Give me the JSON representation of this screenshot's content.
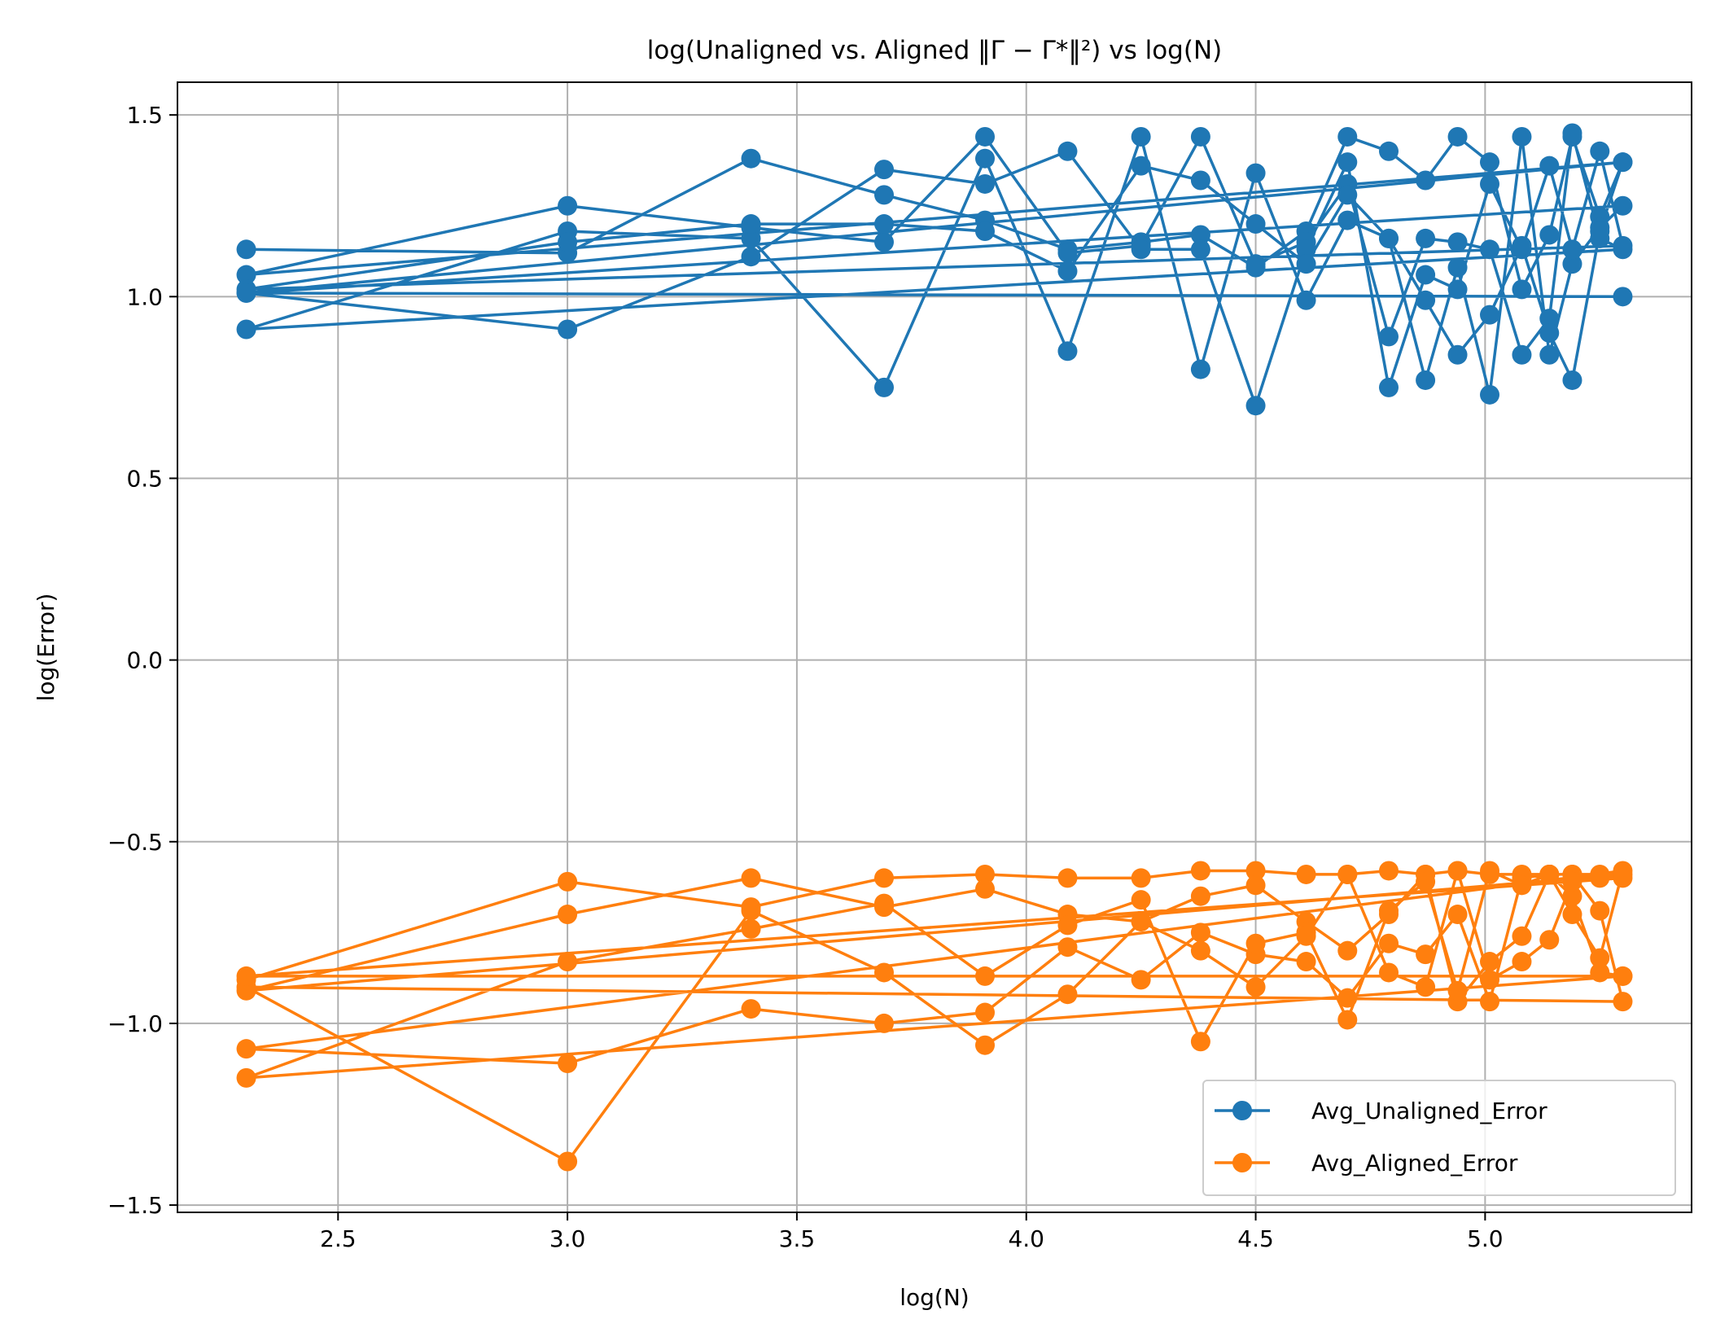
{
  "chart_data": {
    "type": "line",
    "title": "log(Unaligned vs. Aligned ‖Γ − Γ*‖²) vs log(N)",
    "xlabel": "log(N)",
    "ylabel": "log(Error)",
    "xlim": [
      2.15,
      5.45
    ],
    "ylim": [
      -1.52,
      1.59
    ],
    "xticks": [
      2.5,
      3.0,
      3.5,
      4.0,
      4.5,
      5.0
    ],
    "yticks": [
      -1.5,
      -1.0,
      -0.5,
      0.0,
      0.5,
      1.0,
      1.5
    ],
    "xtick_labels": [
      "2.5",
      "3.0",
      "3.5",
      "4.0",
      "4.5",
      "5.0"
    ],
    "ytick_labels": [
      "−1.5",
      "−1.0",
      "−0.5",
      "0.0",
      "0.5",
      "1.0",
      "1.5"
    ],
    "grid": true,
    "legend_position": "lower-right",
    "series": [
      {
        "name": "Avg_Unaligned_Error",
        "color": "#1f77b4",
        "marker": "circle",
        "x": [
          2.3,
          3.0,
          3.4,
          3.69,
          3.91,
          4.09,
          4.25,
          4.38,
          4.5,
          4.61,
          4.7,
          4.79,
          4.87,
          4.94,
          5.01,
          5.08,
          5.14,
          5.19,
          5.25,
          5.3,
          2.3,
          3.0,
          3.4,
          3.69,
          3.91,
          4.09,
          4.25,
          4.38,
          4.5,
          4.61,
          4.7,
          4.79,
          4.87,
          4.94,
          5.01,
          5.08,
          5.14,
          5.19,
          5.25,
          5.3,
          2.3,
          3.0,
          3.4,
          3.69,
          3.91,
          4.09,
          4.25,
          4.38,
          4.5,
          4.61,
          4.7,
          4.79,
          4.87,
          4.94,
          5.01,
          5.08,
          5.14,
          5.19,
          5.25,
          5.3,
          2.3,
          3.0,
          3.4,
          3.69,
          3.91,
          4.09,
          4.25,
          4.38,
          4.5,
          4.61,
          4.7,
          4.79,
          4.87,
          4.94,
          5.01,
          5.08,
          5.14,
          5.19,
          5.25,
          5.3,
          2.3,
          3.0,
          3.4,
          3.69,
          3.91,
          4.09,
          4.25,
          4.38,
          4.5,
          4.61,
          4.7,
          4.79,
          4.87,
          4.94,
          5.01,
          5.08,
          5.14,
          5.19,
          5.25,
          5.3,
          2.3,
          5.3
        ],
        "y": [
          1.13,
          1.12,
          1.38,
          1.28,
          1.21,
          1.13,
          1.15,
          1.17,
          1.08,
          1.18,
          1.44,
          1.4,
          1.32,
          1.44,
          1.37,
          1.02,
          1.17,
          1.44,
          1.22,
          1.37,
          1.06,
          1.25,
          1.19,
          1.15,
          1.44,
          1.12,
          1.14,
          1.44,
          1.09,
          1.15,
          1.31,
          0.89,
          1.16,
          1.15,
          1.13,
          0.84,
          0.94,
          1.45,
          1.16,
          1.13,
          0.91,
          1.18,
          1.16,
          0.75,
          1.38,
          0.85,
          1.44,
          0.8,
          1.34,
          0.99,
          1.21,
          1.16,
          0.77,
          1.08,
          0.73,
          1.44,
          0.84,
          1.09,
          1.19,
          1.25,
          1.01,
          0.91,
          1.11,
          1.35,
          1.31,
          1.4,
          1.13,
          1.13,
          0.7,
          1.13,
          1.37,
          0.75,
          1.06,
          1.02,
          1.31,
          1.13,
          1.36,
          1.13,
          1.4,
          1.14,
          1.02,
          1.15,
          1.2,
          1.2,
          1.18,
          1.07,
          1.36,
          1.32,
          1.2,
          1.09,
          1.28,
          1.16,
          0.99,
          0.84,
          0.95,
          1.14,
          0.9,
          0.77,
          1.18,
          1.37,
          1.01,
          1.0
        ]
      },
      {
        "name": "Avg_Aligned_Error",
        "color": "#ff7f0e",
        "marker": "circle",
        "x": [
          2.3,
          3.0,
          3.4,
          3.69,
          3.91,
          4.09,
          4.25,
          4.38,
          4.5,
          4.61,
          4.7,
          4.79,
          4.87,
          4.94,
          5.01,
          5.08,
          5.14,
          5.19,
          5.25,
          5.3,
          2.3,
          3.0,
          3.4,
          3.69,
          3.91,
          4.09,
          4.25,
          4.38,
          4.5,
          4.61,
          4.7,
          4.79,
          4.87,
          4.94,
          5.01,
          5.08,
          5.14,
          5.19,
          5.25,
          5.3,
          2.3,
          3.0,
          3.4,
          3.69,
          3.91,
          4.09,
          4.25,
          4.38,
          4.5,
          4.61,
          4.7,
          4.79,
          4.87,
          4.94,
          5.01,
          5.08,
          5.14,
          5.19,
          5.25,
          5.3,
          2.3,
          3.0,
          3.4,
          3.69,
          3.91,
          4.09,
          4.25,
          4.38,
          4.5,
          4.61,
          4.7,
          4.79,
          4.87,
          4.94,
          5.01,
          5.08,
          5.14,
          5.19,
          5.25,
          5.3,
          2.3,
          3.0,
          3.4,
          3.69,
          3.91,
          4.09,
          4.25,
          4.38,
          4.5,
          4.61,
          4.7,
          4.79,
          4.87,
          4.94,
          5.01,
          5.08,
          5.14,
          5.19,
          5.25,
          5.3,
          2.3,
          5.3
        ],
        "y": [
          -0.88,
          -0.61,
          -0.68,
          -0.6,
          -0.59,
          -0.6,
          -0.6,
          -0.58,
          -0.58,
          -0.59,
          -0.59,
          -0.58,
          -0.59,
          -0.58,
          -0.59,
          -0.59,
          -0.59,
          -0.59,
          -0.59,
          -0.59,
          -0.91,
          -0.7,
          -0.6,
          -0.68,
          -0.63,
          -0.7,
          -0.72,
          -0.65,
          -0.62,
          -0.72,
          -0.8,
          -0.7,
          -0.59,
          -0.94,
          -0.83,
          -0.76,
          -0.59,
          -0.7,
          -0.82,
          -0.58,
          -1.07,
          -1.11,
          -0.96,
          -1.0,
          -0.97,
          -0.79,
          -0.88,
          -0.75,
          -0.81,
          -0.83,
          -0.93,
          -0.78,
          -0.81,
          -0.7,
          -0.94,
          -0.6,
          -0.59,
          -0.65,
          -0.86,
          -0.87,
          -1.15,
          -0.83,
          -0.74,
          -0.67,
          -0.87,
          -0.73,
          -0.66,
          -1.05,
          -0.78,
          -0.75,
          -0.99,
          -0.69,
          -0.61,
          -0.91,
          -0.58,
          -0.62,
          -0.59,
          -0.59,
          -0.69,
          -0.94,
          -0.9,
          -1.38,
          -0.69,
          -0.86,
          -1.06,
          -0.92,
          -0.72,
          -0.8,
          -0.9,
          -0.76,
          -0.59,
          -0.86,
          -0.9,
          -0.58,
          -0.88,
          -0.83,
          -0.77,
          -0.61,
          -0.6,
          -0.6,
          -0.87,
          -0.87
        ]
      }
    ]
  }
}
